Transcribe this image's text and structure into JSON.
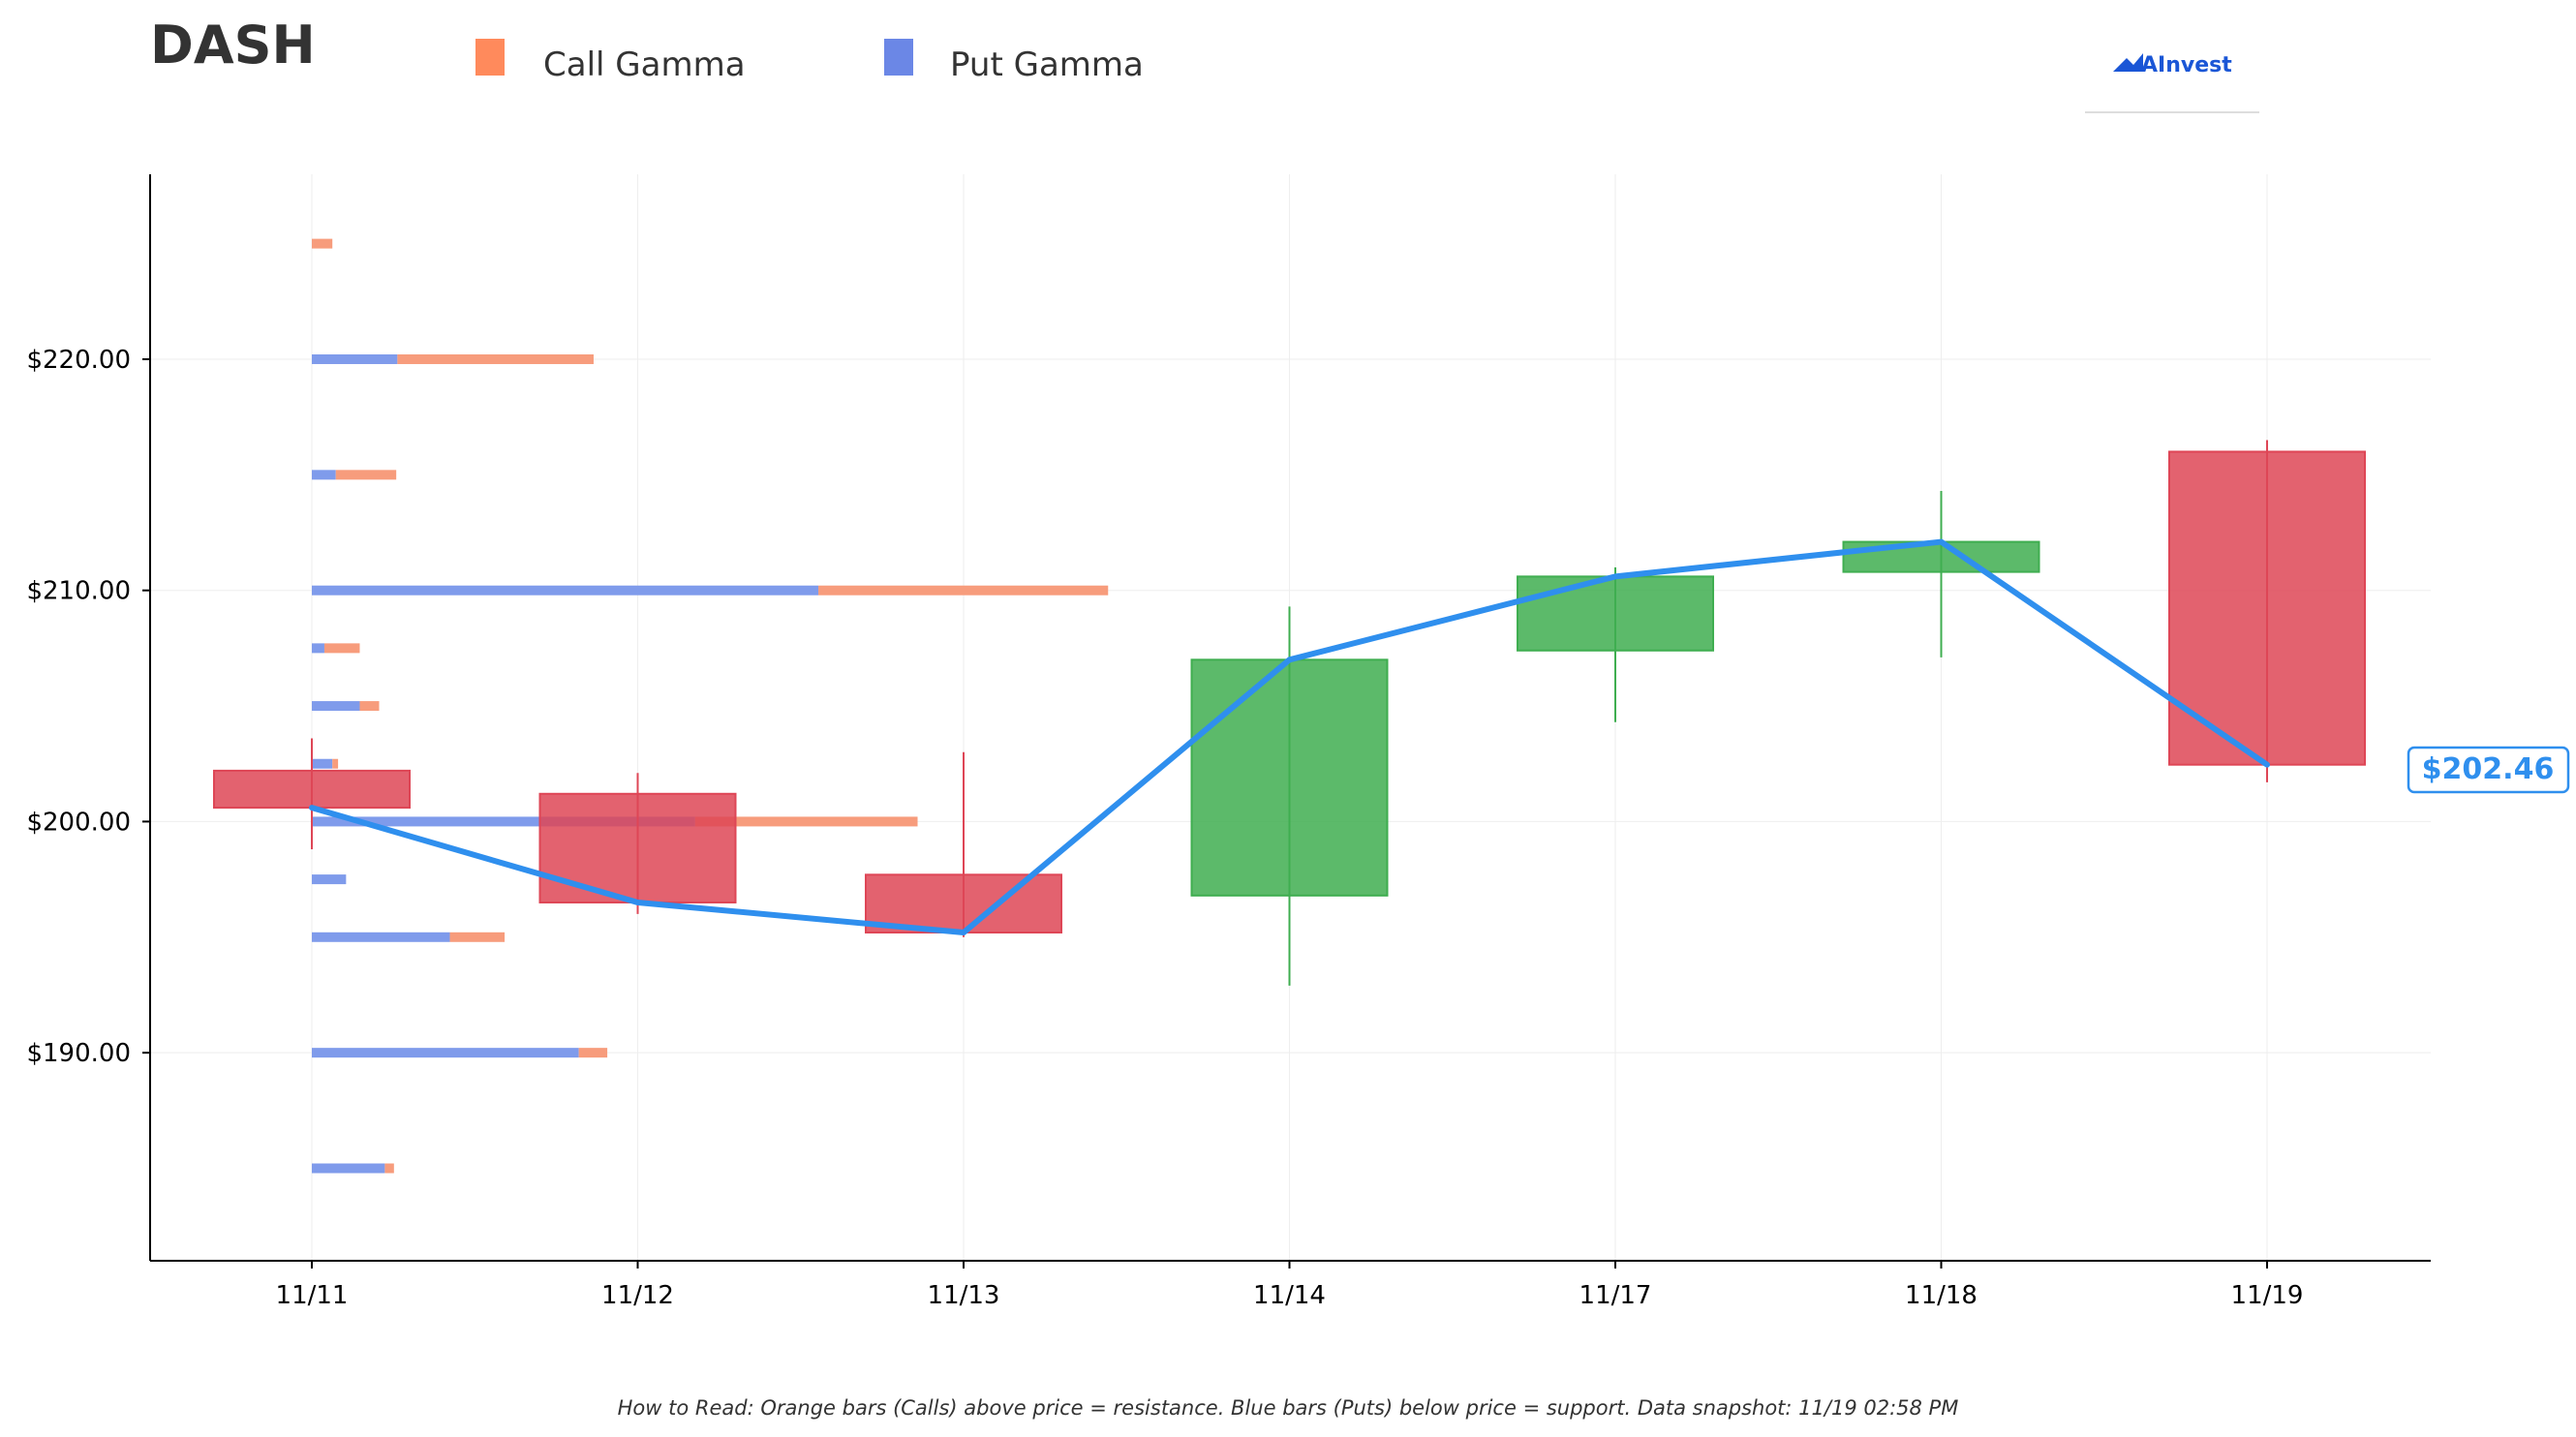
{
  "chart_data": {
    "type": "candlestick",
    "ticker": "DASH",
    "brand": "AInvest",
    "legend": [
      {
        "label": "Call Gamma",
        "color": "#ff8a5c"
      },
      {
        "label": "Put Gamma",
        "color": "#6b87e6"
      }
    ],
    "categories": [
      "11/11",
      "11/12",
      "11/13",
      "11/14",
      "11/17",
      "11/18",
      "11/19"
    ],
    "ylim": [
      181,
      228
    ],
    "yticks": [
      {
        "value": 190,
        "label": "$190.00"
      },
      {
        "value": 200,
        "label": "$200.00"
      },
      {
        "value": 210,
        "label": "$210.00"
      },
      {
        "value": 220,
        "label": "$220.00"
      }
    ],
    "candles": [
      {
        "date": "11/11",
        "open": 202.2,
        "close": 200.6,
        "high": 203.6,
        "low": 198.8
      },
      {
        "date": "11/12",
        "open": 201.2,
        "close": 196.5,
        "high": 202.1,
        "low": 196.0
      },
      {
        "date": "11/13",
        "open": 197.7,
        "close": 195.2,
        "high": 203.0,
        "low": 195.0
      },
      {
        "date": "11/14",
        "open": 196.8,
        "close": 207.0,
        "high": 209.3,
        "low": 192.9
      },
      {
        "date": "11/17",
        "open": 207.4,
        "close": 210.6,
        "high": 211.0,
        "low": 204.3
      },
      {
        "date": "11/18",
        "open": 210.8,
        "close": 212.1,
        "high": 214.3,
        "low": 207.1
      },
      {
        "date": "11/19",
        "open": 216.0,
        "close": 202.46,
        "high": 216.5,
        "low": 201.7
      }
    ],
    "close_line": [
      200.6,
      196.5,
      195.2,
      207.0,
      210.6,
      212.1,
      202.46
    ],
    "gamma_bars": [
      {
        "strike": 225,
        "put": 0.0,
        "call": 0.18
      },
      {
        "strike": 220,
        "put": 0.75,
        "call": 2.47
      },
      {
        "strike": 215,
        "put": 0.21,
        "call": 0.74
      },
      {
        "strike": 210,
        "put": 4.44,
        "call": 6.98
      },
      {
        "strike": 207.5,
        "put": 0.11,
        "call": 0.42
      },
      {
        "strike": 205,
        "put": 0.42,
        "call": 0.59
      },
      {
        "strike": 202.5,
        "put": 0.18,
        "call": 0.23
      },
      {
        "strike": 200,
        "put": 3.36,
        "call": 5.31
      },
      {
        "strike": 197.5,
        "put": 0.3,
        "call": 0.3
      },
      {
        "strike": 195,
        "put": 1.21,
        "call": 1.69
      },
      {
        "strike": 190,
        "put": 2.34,
        "call": 2.59
      },
      {
        "strike": 185,
        "put": 0.64,
        "call": 0.72
      }
    ],
    "last_price_label": "$202.46",
    "colors": {
      "up": "#3fae50",
      "down": "#de4656",
      "line": "#2f8fee",
      "call": "#f79c7c",
      "put": "#7f9beb",
      "axis": "#000000",
      "grid": "#eeeeee"
    },
    "note": "How to Read: Orange bars (Calls) above price = resistance. Blue bars (Puts) below price = support. Data snapshot: 11/19 02:58 PM"
  }
}
